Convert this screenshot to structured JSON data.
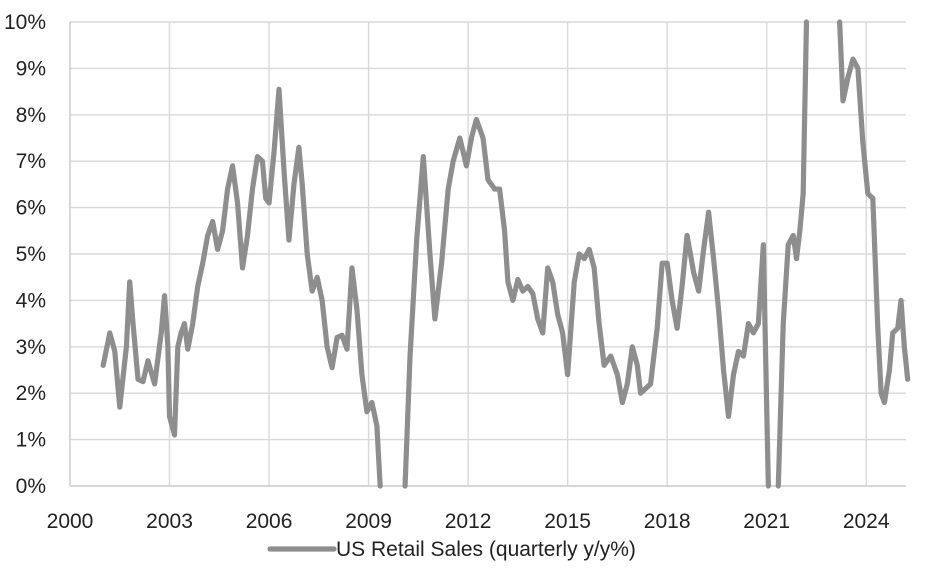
{
  "chart_data": {
    "type": "line",
    "title": "",
    "xlabel": "",
    "ylabel": "",
    "xlim": [
      2000,
      2025.2
    ],
    "ylim": [
      0,
      10
    ],
    "grid": true,
    "legend_position": "bottom-center",
    "x_ticks": [
      2000,
      2003,
      2006,
      2009,
      2012,
      2015,
      2018,
      2021,
      2024
    ],
    "x_tick_labels": [
      "2000",
      "2003",
      "2006",
      "2009",
      "2012",
      "2015",
      "2018",
      "2021",
      "2024"
    ],
    "y_ticks": [
      0,
      1,
      2,
      3,
      4,
      5,
      6,
      7,
      8,
      9,
      10
    ],
    "y_tick_labels": [
      "0%",
      "1%",
      "2%",
      "3%",
      "4%",
      "5%",
      "6%",
      "7%",
      "8%",
      "9%",
      "10%"
    ],
    "series": [
      {
        "name": "US Retail Sales (quarterly y/y%)",
        "color": "#8e8e8e",
        "points": [
          [
            2001.0,
            2.6
          ],
          [
            2001.2,
            3.3
          ],
          [
            2001.35,
            2.9
          ],
          [
            2001.5,
            1.7
          ],
          [
            2001.7,
            3.0
          ],
          [
            2001.8,
            4.4
          ],
          [
            2001.9,
            3.5
          ],
          [
            2002.05,
            2.3
          ],
          [
            2002.2,
            2.25
          ],
          [
            2002.35,
            2.7
          ],
          [
            2002.55,
            2.2
          ],
          [
            2002.75,
            3.3
          ],
          [
            2002.85,
            4.1
          ],
          [
            2002.95,
            3.0
          ],
          [
            2003.0,
            1.5
          ],
          [
            2003.15,
            1.1
          ],
          [
            2003.25,
            3.0
          ],
          [
            2003.35,
            3.3
          ],
          [
            2003.45,
            3.5
          ],
          [
            2003.55,
            2.95
          ],
          [
            2003.7,
            3.5
          ],
          [
            2003.85,
            4.3
          ],
          [
            2004.0,
            4.8
          ],
          [
            2004.15,
            5.4
          ],
          [
            2004.3,
            5.7
          ],
          [
            2004.45,
            5.1
          ],
          [
            2004.6,
            5.5
          ],
          [
            2004.75,
            6.4
          ],
          [
            2004.9,
            6.9
          ],
          [
            2005.05,
            6.1
          ],
          [
            2005.2,
            4.7
          ],
          [
            2005.35,
            5.4
          ],
          [
            2005.5,
            6.4
          ],
          [
            2005.65,
            7.1
          ],
          [
            2005.8,
            7.0
          ],
          [
            2005.9,
            6.2
          ],
          [
            2006.0,
            6.1
          ],
          [
            2006.15,
            7.2
          ],
          [
            2006.3,
            8.55
          ],
          [
            2006.45,
            6.8
          ],
          [
            2006.6,
            5.3
          ],
          [
            2006.75,
            6.5
          ],
          [
            2006.9,
            7.3
          ],
          [
            2007.0,
            6.5
          ],
          [
            2007.15,
            5.0
          ],
          [
            2007.3,
            4.2
          ],
          [
            2007.45,
            4.5
          ],
          [
            2007.6,
            4.0
          ],
          [
            2007.75,
            3.0
          ],
          [
            2007.9,
            2.55
          ],
          [
            2008.05,
            3.2
          ],
          [
            2008.2,
            3.25
          ],
          [
            2008.35,
            2.95
          ],
          [
            2008.5,
            4.7
          ],
          [
            2008.65,
            3.8
          ],
          [
            2008.8,
            2.4
          ],
          [
            2008.95,
            1.6
          ],
          [
            2009.1,
            1.8
          ],
          [
            2009.25,
            1.3
          ],
          [
            2009.35,
            0.0
          ]
        ]
      },
      {
        "name": "",
        "color": "#8e8e8e",
        "points": [
          [
            2010.1,
            0.0
          ],
          [
            2010.25,
            2.8
          ],
          [
            2010.45,
            5.3
          ],
          [
            2010.65,
            7.1
          ],
          [
            2010.85,
            5.0
          ],
          [
            2011.0,
            3.6
          ],
          [
            2011.2,
            4.8
          ],
          [
            2011.4,
            6.4
          ],
          [
            2011.55,
            7.0
          ],
          [
            2011.75,
            7.5
          ],
          [
            2011.95,
            6.9
          ],
          [
            2012.1,
            7.5
          ],
          [
            2012.25,
            7.9
          ],
          [
            2012.45,
            7.5
          ],
          [
            2012.6,
            6.6
          ],
          [
            2012.8,
            6.4
          ],
          [
            2012.95,
            6.4
          ],
          [
            2013.1,
            5.5
          ],
          [
            2013.2,
            4.4
          ],
          [
            2013.35,
            4.0
          ],
          [
            2013.5,
            4.45
          ],
          [
            2013.65,
            4.2
          ],
          [
            2013.8,
            4.3
          ],
          [
            2013.95,
            4.15
          ],
          [
            2014.1,
            3.6
          ],
          [
            2014.25,
            3.3
          ],
          [
            2014.4,
            4.7
          ],
          [
            2014.55,
            4.4
          ],
          [
            2014.7,
            3.7
          ],
          [
            2014.85,
            3.3
          ],
          [
            2015.0,
            2.4
          ],
          [
            2015.2,
            4.4
          ],
          [
            2015.35,
            5.0
          ],
          [
            2015.5,
            4.9
          ],
          [
            2015.65,
            5.1
          ],
          [
            2015.8,
            4.7
          ],
          [
            2015.95,
            3.5
          ],
          [
            2016.1,
            2.6
          ],
          [
            2016.3,
            2.8
          ],
          [
            2016.5,
            2.4
          ],
          [
            2016.65,
            1.8
          ],
          [
            2016.8,
            2.2
          ],
          [
            2016.95,
            3.0
          ],
          [
            2017.1,
            2.6
          ],
          [
            2017.2,
            2.0
          ],
          [
            2017.35,
            2.1
          ],
          [
            2017.5,
            2.2
          ],
          [
            2017.7,
            3.4
          ],
          [
            2017.85,
            4.8
          ],
          [
            2018.0,
            4.8
          ],
          [
            2018.15,
            4.0
          ],
          [
            2018.3,
            3.4
          ],
          [
            2018.45,
            4.3
          ],
          [
            2018.6,
            5.4
          ],
          [
            2018.8,
            4.6
          ],
          [
            2018.95,
            4.2
          ],
          [
            2019.1,
            5.1
          ],
          [
            2019.25,
            5.9
          ],
          [
            2019.4,
            4.9
          ],
          [
            2019.55,
            3.8
          ],
          [
            2019.7,
            2.5
          ],
          [
            2019.85,
            1.5
          ],
          [
            2020.0,
            2.4
          ],
          [
            2020.15,
            2.9
          ],
          [
            2020.3,
            2.8
          ],
          [
            2020.45,
            3.5
          ],
          [
            2020.6,
            3.3
          ],
          [
            2020.75,
            3.5
          ],
          [
            2020.9,
            5.2
          ],
          [
            2021.05,
            0.0
          ]
        ]
      },
      {
        "name": "",
        "color": "#8e8e8e",
        "points": [
          [
            2021.35,
            0.0
          ],
          [
            2021.5,
            3.5
          ],
          [
            2021.65,
            5.2
          ],
          [
            2021.8,
            5.4
          ],
          [
            2021.9,
            4.9
          ],
          [
            2022.0,
            5.5
          ],
          [
            2022.1,
            6.3
          ],
          [
            2022.2,
            10.0
          ]
        ]
      },
      {
        "name": "",
        "color": "#8e8e8e",
        "points": [
          [
            2023.2,
            10.0
          ],
          [
            2023.3,
            8.3
          ],
          [
            2023.45,
            8.8
          ],
          [
            2023.6,
            9.2
          ],
          [
            2023.75,
            9.0
          ],
          [
            2023.9,
            7.4
          ],
          [
            2024.05,
            6.3
          ],
          [
            2024.2,
            6.2
          ],
          [
            2024.35,
            3.4
          ],
          [
            2024.45,
            2.0
          ],
          [
            2024.55,
            1.8
          ],
          [
            2024.7,
            2.5
          ],
          [
            2024.8,
            3.3
          ],
          [
            2024.95,
            3.4
          ],
          [
            2025.05,
            4.0
          ],
          [
            2025.15,
            3.0
          ],
          [
            2025.25,
            2.3
          ]
        ]
      }
    ]
  }
}
